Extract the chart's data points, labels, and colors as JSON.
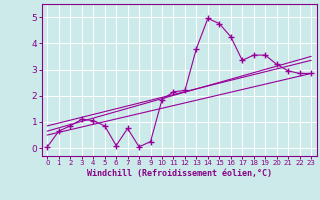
{
  "title": "",
  "xlabel": "Windchill (Refroidissement éolien,°C)",
  "ylabel": "",
  "bg_color": "#cceaea",
  "grid_color": "#ffffff",
  "line_color": "#990099",
  "tick_color": "#880088",
  "xlim": [
    -0.5,
    23.5
  ],
  "ylim": [
    -0.3,
    5.5
  ],
  "xticks": [
    0,
    1,
    2,
    3,
    4,
    5,
    6,
    7,
    8,
    9,
    10,
    11,
    12,
    13,
    14,
    15,
    16,
    17,
    18,
    19,
    20,
    21,
    22,
    23
  ],
  "yticks": [
    0,
    1,
    2,
    3,
    4,
    5
  ],
  "series": {
    "main": {
      "x": [
        0,
        1,
        2,
        3,
        4,
        5,
        6,
        7,
        8,
        9,
        10,
        11,
        12,
        13,
        14,
        15,
        16,
        17,
        18,
        19,
        20,
        21,
        22,
        23
      ],
      "y": [
        0.05,
        0.65,
        0.85,
        1.1,
        1.05,
        0.85,
        0.1,
        0.75,
        0.05,
        0.25,
        1.85,
        2.15,
        2.2,
        3.8,
        4.95,
        4.75,
        4.25,
        3.35,
        3.55,
        3.55,
        3.2,
        2.95,
        2.85,
        2.85
      ]
    },
    "linear1": {
      "x": [
        0,
        23
      ],
      "y": [
        0.65,
        3.5
      ]
    },
    "linear2": {
      "x": [
        0,
        23
      ],
      "y": [
        0.5,
        2.85
      ]
    },
    "linear3": {
      "x": [
        0,
        23
      ],
      "y": [
        0.85,
        3.35
      ]
    }
  }
}
